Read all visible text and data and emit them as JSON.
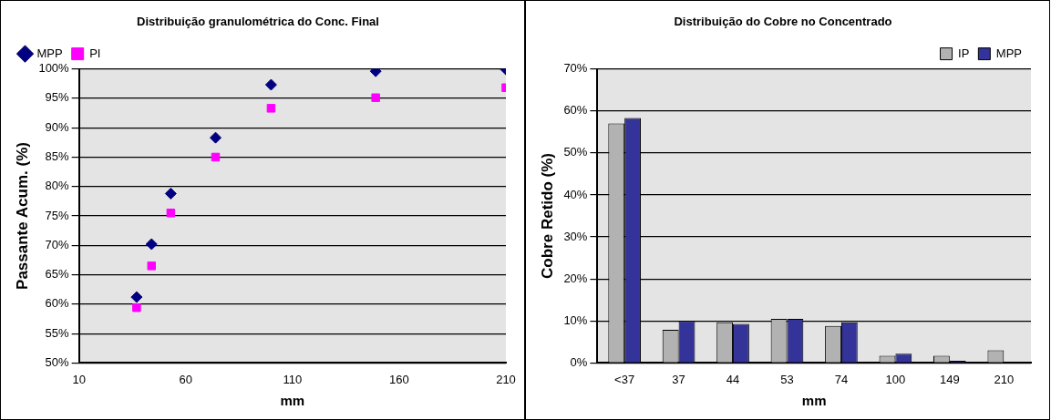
{
  "chart_data": [
    {
      "type": "scatter",
      "title": "Distribuição granulométrica do Conc. Final",
      "xlabel": "mm",
      "ylabel": "Passante Acum. (%)",
      "x": [
        37,
        44,
        53,
        74,
        100,
        149,
        210
      ],
      "series": [
        {
          "name": "MPP",
          "color": "#000080",
          "marker": "diamond",
          "values": [
            61.2,
            70.2,
            78.8,
            88.3,
            97.3,
            99.6,
            99.9
          ]
        },
        {
          "name": "PI",
          "color": "#ff00ff",
          "marker": "square",
          "values": [
            59.4,
            66.5,
            75.5,
            85.0,
            93.3,
            95.1,
            96.8
          ]
        }
      ],
      "xlim": [
        10,
        210
      ],
      "xticks": [
        10,
        60,
        110,
        160,
        210
      ],
      "ylim": [
        50,
        100
      ],
      "yticks": [
        {
          "value": 50,
          "label": "50%"
        },
        {
          "value": 55,
          "label": "55%"
        },
        {
          "value": 60,
          "label": "60%"
        },
        {
          "value": 65,
          "label": "65%"
        },
        {
          "value": 70,
          "label": "70%"
        },
        {
          "value": 75,
          "label": "75%"
        },
        {
          "value": 80,
          "label": "80%"
        },
        {
          "value": 85,
          "label": "85%"
        },
        {
          "value": 90,
          "label": "90%"
        },
        {
          "value": 95,
          "label": "95%"
        },
        {
          "value": 100,
          "label": "100%"
        }
      ],
      "grid": "y",
      "legend": "top left"
    },
    {
      "type": "bar",
      "title": "Distribuição do Cobre no Concentrado",
      "xlabel": "mm",
      "ylabel": "Cobre Retido (%)",
      "categories": [
        "<37",
        "37",
        "44",
        "53",
        "74",
        "100",
        "149",
        "210"
      ],
      "series": [
        {
          "name": "IP",
          "color": "#b2b2b2",
          "values": [
            57.0,
            7.9,
            9.7,
            10.5,
            8.8,
            1.7,
            1.7,
            3.0
          ]
        },
        {
          "name": "MPP",
          "color": "#333399",
          "values": [
            58.3,
            10.0,
            9.3,
            10.5,
            9.7,
            2.2,
            0.5,
            null
          ]
        }
      ],
      "ylim": [
        0,
        70
      ],
      "yticks": [
        {
          "value": 0,
          "label": "0%"
        },
        {
          "value": 10,
          "label": "10%"
        },
        {
          "value": 20,
          "label": "20%"
        },
        {
          "value": 30,
          "label": "30%"
        },
        {
          "value": 40,
          "label": "40%"
        },
        {
          "value": 50,
          "label": "50%"
        },
        {
          "value": 60,
          "label": "60%"
        },
        {
          "value": 70,
          "label": "70%"
        }
      ],
      "grid": "y",
      "legend": "top right"
    }
  ]
}
